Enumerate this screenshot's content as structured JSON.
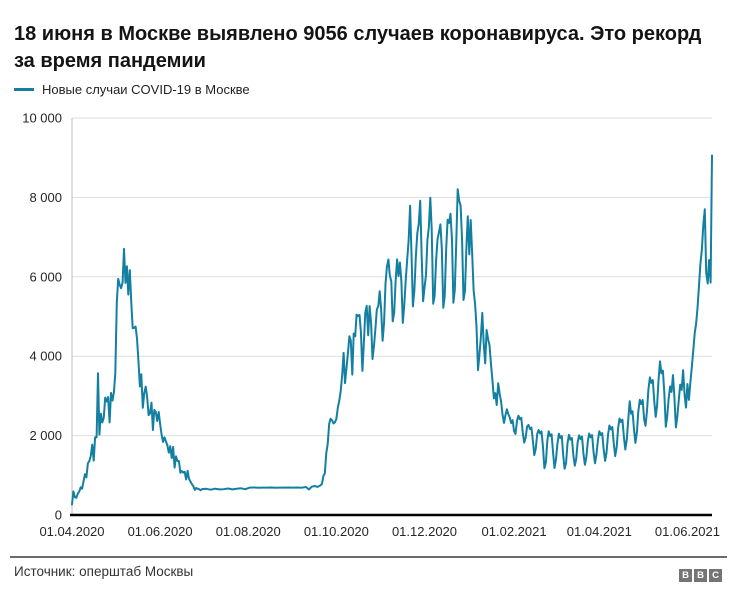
{
  "headline": "18 июня в Москве выявлено 9056 случаев коронавируса. Это рекорд за время пандемии",
  "legend": {
    "label": "Новые случаи COVID-19 в Москве"
  },
  "footer": {
    "source": "Источник: оперштаб Москвы",
    "logo_letters": [
      "B",
      "B",
      "C"
    ]
  },
  "colors": {
    "line": "#1380A1",
    "grid": "#DEDEDE",
    "axis": "#BDBDBD",
    "baseline": "#000000",
    "tick_text": "#262626",
    "logo": "#757575"
  },
  "chart_data": {
    "type": "line",
    "series_name": "Новые случаи COVID-19 в Москве",
    "x_start_date": "2020-04-01",
    "x_end_date": "2021-06-18",
    "record_value": 9056,
    "record_date": "18.06.2021",
    "ylim": [
      0,
      10000
    ],
    "grid": "horizontal",
    "legend_position": "top-left",
    "yticks": [
      {
        "v": 0,
        "label": "0"
      },
      {
        "v": 2000,
        "label": "2 000"
      },
      {
        "v": 4000,
        "label": "4 000"
      },
      {
        "v": 6000,
        "label": "6 000"
      },
      {
        "v": 8000,
        "label": "8 000"
      },
      {
        "v": 10000,
        "label": "10 000"
      }
    ],
    "xticks": [
      {
        "day": 0,
        "label": "01.04.2020"
      },
      {
        "day": 61,
        "label": "01.06.2020"
      },
      {
        "day": 122,
        "label": "01.08.2020"
      },
      {
        "day": 183,
        "label": "01.10.2020"
      },
      {
        "day": 244,
        "label": "01.12.2020"
      },
      {
        "day": 306,
        "label": "01.02.2021"
      },
      {
        "day": 365,
        "label": "01.04.2021"
      },
      {
        "day": 426,
        "label": "01.06.2021"
      }
    ],
    "points_note": "pairs of [day offset from 2020-04-01, new daily cases], values estimated from plot",
    "points": [
      [
        0,
        267
      ],
      [
        1,
        595
      ],
      [
        2,
        448
      ],
      [
        3,
        434
      ],
      [
        4,
        536
      ],
      [
        5,
        591
      ],
      [
        6,
        697
      ],
      [
        7,
        660
      ],
      [
        8,
        857
      ],
      [
        9,
        1030
      ],
      [
        10,
        949
      ],
      [
        11,
        1306
      ],
      [
        12,
        1355
      ],
      [
        13,
        1489
      ],
      [
        14,
        1774
      ],
      [
        15,
        1370
      ],
      [
        16,
        1959
      ],
      [
        17,
        1957
      ],
      [
        18,
        3570
      ],
      [
        19,
        2026
      ],
      [
        20,
        2548
      ],
      [
        21,
        2332
      ],
      [
        22,
        2457
      ],
      [
        23,
        2957
      ],
      [
        24,
        2860
      ],
      [
        25,
        2971
      ],
      [
        26,
        2333
      ],
      [
        27,
        3075
      ],
      [
        28,
        2882
      ],
      [
        29,
        3093
      ],
      [
        30,
        3561
      ],
      [
        31,
        5358
      ],
      [
        32,
        5948
      ],
      [
        33,
        5795
      ],
      [
        34,
        5714
      ],
      [
        35,
        5858
      ],
      [
        36,
        6703
      ],
      [
        37,
        5846
      ],
      [
        38,
        6268
      ],
      [
        39,
        5551
      ],
      [
        40,
        6169
      ],
      [
        41,
        5392
      ],
      [
        42,
        4703
      ],
      [
        43,
        4712
      ],
      [
        44,
        4748
      ],
      [
        45,
        4442
      ],
      [
        46,
        3855
      ],
      [
        47,
        3238
      ],
      [
        48,
        3545
      ],
      [
        49,
        2699
      ],
      [
        50,
        3064
      ],
      [
        51,
        3235
      ],
      [
        52,
        2988
      ],
      [
        53,
        2516
      ],
      [
        54,
        2560
      ],
      [
        55,
        2830
      ],
      [
        56,
        2140
      ],
      [
        57,
        2645
      ],
      [
        58,
        2595
      ],
      [
        59,
        2367
      ],
      [
        60,
        2595
      ],
      [
        61,
        2297
      ],
      [
        62,
        2026
      ],
      [
        63,
        1842
      ],
      [
        64,
        1958
      ],
      [
        65,
        1855
      ],
      [
        66,
        1761
      ],
      [
        67,
        1572
      ],
      [
        68,
        1732
      ],
      [
        69,
        1436
      ],
      [
        70,
        1714
      ],
      [
        71,
        1195
      ],
      [
        72,
        1477
      ],
      [
        73,
        1360
      ],
      [
        74,
        1358
      ],
      [
        75,
        1062
      ],
      [
        76,
        1109
      ],
      [
        77,
        1068
      ],
      [
        78,
        1088
      ],
      [
        79,
        894
      ],
      [
        80,
        1113
      ],
      [
        81,
        909
      ],
      [
        82,
        842
      ],
      [
        83,
        776
      ],
      [
        84,
        723
      ],
      [
        85,
        633
      ],
      [
        86,
        680
      ],
      [
        87,
        662
      ],
      [
        88,
        650
      ],
      [
        89,
        621
      ],
      [
        90,
        653
      ],
      [
        93,
        659
      ],
      [
        96,
        637
      ],
      [
        99,
        662
      ],
      [
        102,
        645
      ],
      [
        105,
        650
      ],
      [
        108,
        668
      ],
      [
        111,
        646
      ],
      [
        114,
        659
      ],
      [
        117,
        672
      ],
      [
        120,
        651
      ],
      [
        123,
        689
      ],
      [
        126,
        693
      ],
      [
        129,
        687
      ],
      [
        132,
        691
      ],
      [
        135,
        689
      ],
      [
        138,
        692
      ],
      [
        141,
        688
      ],
      [
        144,
        691
      ],
      [
        147,
        689
      ],
      [
        150,
        693
      ],
      [
        153,
        690
      ],
      [
        156,
        692
      ],
      [
        159,
        688
      ],
      [
        162,
        706
      ],
      [
        164,
        642
      ],
      [
        166,
        712
      ],
      [
        168,
        730
      ],
      [
        170,
        708
      ],
      [
        172,
        745
      ],
      [
        173,
        783
      ],
      [
        174,
        980
      ],
      [
        175,
        1050
      ],
      [
        176,
        1560
      ],
      [
        177,
        1792
      ],
      [
        178,
        2300
      ],
      [
        179,
        2424
      ],
      [
        180,
        2387
      ],
      [
        181,
        2308
      ],
      [
        182,
        2332
      ],
      [
        183,
        2424
      ],
      [
        184,
        2704
      ],
      [
        185,
        2884
      ],
      [
        186,
        3119
      ],
      [
        187,
        3537
      ],
      [
        188,
        4082
      ],
      [
        189,
        3323
      ],
      [
        190,
        3701
      ],
      [
        191,
        4071
      ],
      [
        192,
        4501
      ],
      [
        193,
        4395
      ],
      [
        194,
        3537
      ],
      [
        195,
        4573
      ],
      [
        196,
        4501
      ],
      [
        197,
        5049
      ],
      [
        198,
        5013
      ],
      [
        199,
        5041
      ],
      [
        200,
        4610
      ],
      [
        201,
        3629
      ],
      [
        202,
        4312
      ],
      [
        203,
        5104
      ],
      [
        204,
        5268
      ],
      [
        205,
        4526
      ],
      [
        206,
        5261
      ],
      [
        207,
        4829
      ],
      [
        208,
        3930
      ],
      [
        209,
        4246
      ],
      [
        210,
        4680
      ],
      [
        211,
        5170
      ],
      [
        212,
        5268
      ],
      [
        213,
        5638
      ],
      [
        214,
        5150
      ],
      [
        215,
        4389
      ],
      [
        216,
        4853
      ],
      [
        217,
        5826
      ],
      [
        218,
        6253
      ],
      [
        219,
        6435
      ],
      [
        220,
        6035
      ],
      [
        221,
        5885
      ],
      [
        222,
        4877
      ],
      [
        223,
        5102
      ],
      [
        224,
        5882
      ],
      [
        225,
        6439
      ],
      [
        226,
        6020
      ],
      [
        227,
        6360
      ],
      [
        228,
        5874
      ],
      [
        229,
        4838
      ],
      [
        230,
        5297
      ],
      [
        231,
        5902
      ],
      [
        232,
        6438
      ],
      [
        233,
        6902
      ],
      [
        234,
        7790
      ],
      [
        235,
        6575
      ],
      [
        236,
        5255
      ],
      [
        237,
        5664
      ],
      [
        238,
        6488
      ],
      [
        239,
        7096
      ],
      [
        240,
        7320
      ],
      [
        241,
        7918
      ],
      [
        242,
        6590
      ],
      [
        243,
        5384
      ],
      [
        244,
        5724
      ],
      [
        245,
        6048
      ],
      [
        246,
        6924
      ],
      [
        247,
        7236
      ],
      [
        248,
        7993
      ],
      [
        249,
        7199
      ],
      [
        250,
        5322
      ],
      [
        251,
        5514
      ],
      [
        252,
        6421
      ],
      [
        253,
        6934
      ],
      [
        254,
        7133
      ],
      [
        255,
        7320
      ],
      [
        256,
        6715
      ],
      [
        257,
        5218
      ],
      [
        258,
        5508
      ],
      [
        259,
        6711
      ],
      [
        260,
        7437
      ],
      [
        261,
        7358
      ],
      [
        262,
        7586
      ],
      [
        263,
        6923
      ],
      [
        264,
        5347
      ],
      [
        265,
        5671
      ],
      [
        266,
        6902
      ],
      [
        267,
        8203
      ],
      [
        268,
        7918
      ],
      [
        269,
        7797
      ],
      [
        270,
        6911
      ],
      [
        271,
        5415
      ],
      [
        272,
        5652
      ],
      [
        273,
        6732
      ],
      [
        274,
        7526
      ],
      [
        275,
        6566
      ],
      [
        276,
        7430
      ],
      [
        277,
        6571
      ],
      [
        278,
        5664
      ],
      [
        279,
        5306
      ],
      [
        280,
        4748
      ],
      [
        281,
        3651
      ],
      [
        282,
        4029
      ],
      [
        283,
        4456
      ],
      [
        284,
        5090
      ],
      [
        285,
        4320
      ],
      [
        286,
        3818
      ],
      [
        287,
        4661
      ],
      [
        288,
        4427
      ],
      [
        289,
        4280
      ],
      [
        290,
        3791
      ],
      [
        291,
        3402
      ],
      [
        292,
        2936
      ],
      [
        293,
        3070
      ],
      [
        294,
        2770
      ],
      [
        295,
        3319
      ],
      [
        296,
        3064
      ],
      [
        297,
        2851
      ],
      [
        298,
        2537
      ],
      [
        299,
        2320
      ],
      [
        300,
        2508
      ],
      [
        301,
        2662
      ],
      [
        302,
        2542
      ],
      [
        303,
        2461
      ],
      [
        304,
        2316
      ],
      [
        305,
        2388
      ],
      [
        306,
        2110
      ],
      [
        307,
        2042
      ],
      [
        308,
        2374
      ],
      [
        309,
        2502
      ],
      [
        310,
        2412
      ],
      [
        311,
        2448
      ],
      [
        312,
        2089
      ],
      [
        313,
        1824
      ],
      [
        314,
        1943
      ],
      [
        315,
        2228
      ],
      [
        316,
        2270
      ],
      [
        317,
        2163
      ],
      [
        318,
        2205
      ],
      [
        319,
        1868
      ],
      [
        320,
        1509
      ],
      [
        321,
        1665
      ],
      [
        322,
        2039
      ],
      [
        323,
        2142
      ],
      [
        324,
        2054
      ],
      [
        325,
        2108
      ],
      [
        326,
        1704
      ],
      [
        327,
        1178
      ],
      [
        328,
        1325
      ],
      [
        329,
        1865
      ],
      [
        330,
        2108
      ],
      [
        331,
        1987
      ],
      [
        332,
        2032
      ],
      [
        333,
        1565
      ],
      [
        334,
        1184
      ],
      [
        335,
        1406
      ],
      [
        336,
        1789
      ],
      [
        337,
        2049
      ],
      [
        338,
        1942
      ],
      [
        339,
        1987
      ],
      [
        340,
        1510
      ],
      [
        341,
        1163
      ],
      [
        342,
        1318
      ],
      [
        343,
        1808
      ],
      [
        344,
        2021
      ],
      [
        345,
        1897
      ],
      [
        346,
        1936
      ],
      [
        347,
        1522
      ],
      [
        348,
        1241
      ],
      [
        349,
        1409
      ],
      [
        350,
        1826
      ],
      [
        351,
        2007
      ],
      [
        352,
        1915
      ],
      [
        353,
        1978
      ],
      [
        354,
        1556
      ],
      [
        355,
        1264
      ],
      [
        356,
        1447
      ],
      [
        357,
        1851
      ],
      [
        358,
        2052
      ],
      [
        359,
        1957
      ],
      [
        360,
        2012
      ],
      [
        361,
        1597
      ],
      [
        362,
        1303
      ],
      [
        363,
        1516
      ],
      [
        364,
        1879
      ],
      [
        365,
        2112
      ],
      [
        366,
        2014
      ],
      [
        367,
        2063
      ],
      [
        368,
        1667
      ],
      [
        369,
        1363
      ],
      [
        370,
        1568
      ],
      [
        371,
        2009
      ],
      [
        372,
        2254
      ],
      [
        373,
        2158
      ],
      [
        374,
        2217
      ],
      [
        375,
        1795
      ],
      [
        376,
        1484
      ],
      [
        377,
        1712
      ],
      [
        378,
        2178
      ],
      [
        379,
        2431
      ],
      [
        380,
        2342
      ],
      [
        381,
        2404
      ],
      [
        382,
        1967
      ],
      [
        383,
        1649
      ],
      [
        384,
        1899
      ],
      [
        385,
        2380
      ],
      [
        386,
        2866
      ],
      [
        387,
        2552
      ],
      [
        388,
        2613
      ],
      [
        389,
        2160
      ],
      [
        390,
        1816
      ],
      [
        391,
        2086
      ],
      [
        392,
        2601
      ],
      [
        393,
        2903
      ],
      [
        394,
        2795
      ],
      [
        395,
        2897
      ],
      [
        396,
        2421
      ],
      [
        397,
        2246
      ],
      [
        398,
        2625
      ],
      [
        399,
        3161
      ],
      [
        400,
        3465
      ],
      [
        401,
        3327
      ],
      [
        402,
        3398
      ],
      [
        403,
        2887
      ],
      [
        404,
        2472
      ],
      [
        405,
        2763
      ],
      [
        406,
        3383
      ],
      [
        407,
        3869
      ],
      [
        408,
        3568
      ],
      [
        409,
        3637
      ],
      [
        410,
        3080
      ],
      [
        411,
        2221
      ],
      [
        412,
        2484
      ],
      [
        413,
        2947
      ],
      [
        414,
        3237
      ],
      [
        415,
        3102
      ],
      [
        416,
        3525
      ],
      [
        417,
        2966
      ],
      [
        418,
        2207
      ],
      [
        419,
        2476
      ],
      [
        420,
        2901
      ],
      [
        421,
        3284
      ],
      [
        422,
        3153
      ],
      [
        423,
        3651
      ],
      [
        424,
        3022
      ],
      [
        425,
        2705
      ],
      [
        426,
        3300
      ],
      [
        427,
        2900
      ],
      [
        428,
        3320
      ],
      [
        429,
        3719
      ],
      [
        430,
        4124
      ],
      [
        431,
        4580
      ],
      [
        432,
        4817
      ],
      [
        433,
        5245
      ],
      [
        434,
        5782
      ],
      [
        435,
        6320
      ],
      [
        436,
        6701
      ],
      [
        437,
        7304
      ],
      [
        438,
        7704
      ],
      [
        439,
        6100
      ],
      [
        440,
        5830
      ],
      [
        441,
        6422
      ],
      [
        442,
        5853
      ],
      [
        443,
        9056
      ]
    ]
  }
}
